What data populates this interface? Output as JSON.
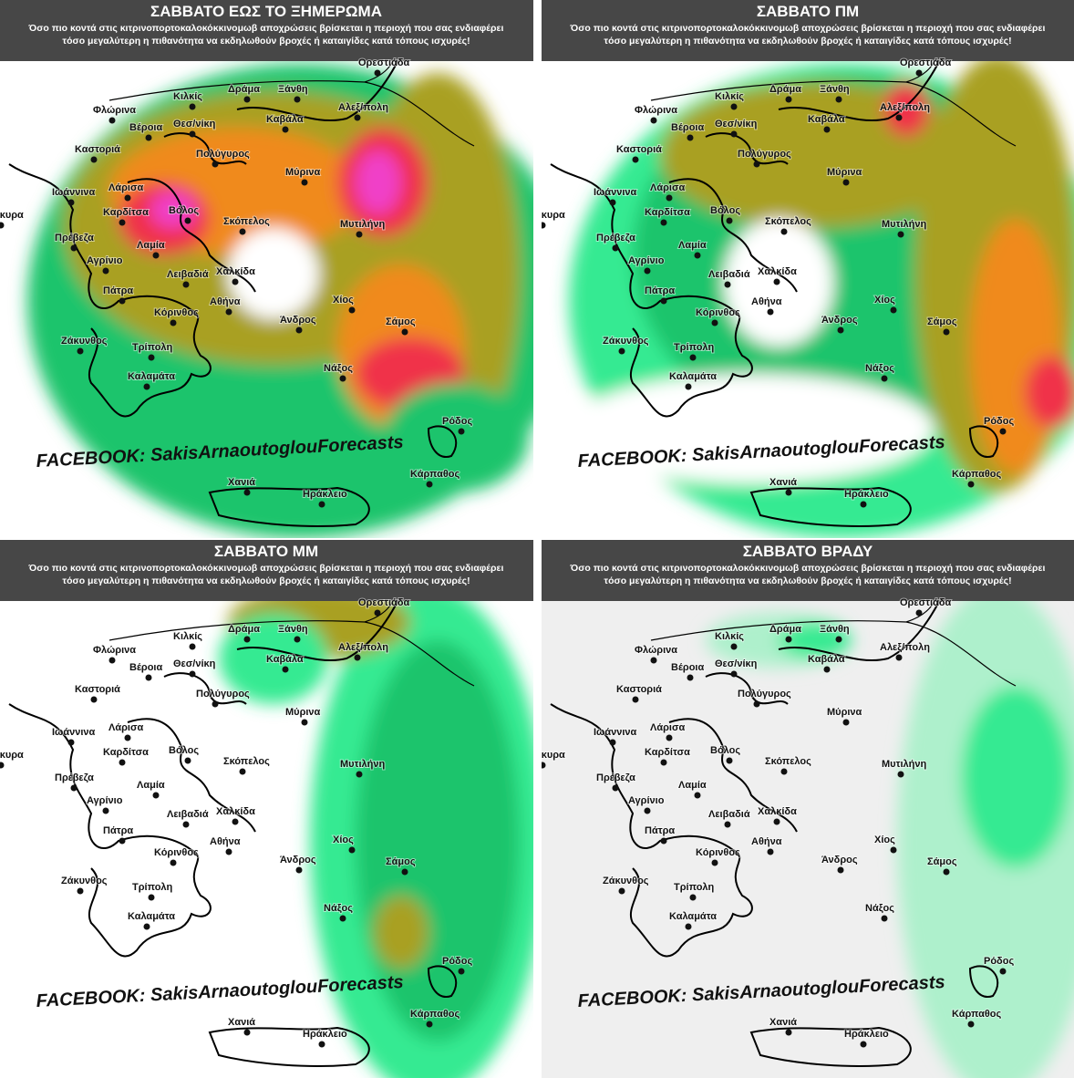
{
  "caption_lines": [
    "Όσο πιο κοντά στις κιτρινοπορτοκαλοκόκκινομωβ αποχρώσεις βρίσκεται η περιοχή που σας ενδιαφέρει",
    "τόσο μεγαλύτερη η πιθανότητα  να εκδηλωθούν βροχές ή καταιγίδες κατά τόπους ισχυρές!"
  ],
  "watermark": "FACEBOOK: SakisArnaoutoglouForecasts",
  "panels": [
    {
      "title": "ΣΑΒΒΑΤΟ ΕΩΣ ΤΟ ΞΗΜΕΡΩΜΑ"
    },
    {
      "title": "ΣΑΒΒΑΤΟ ΠΜ"
    },
    {
      "title": "ΣΑΒΒΑΤΟ ΜΜ"
    },
    {
      "title": "ΣΑΒΒΑΤΟ ΒΡΑΔΥ"
    }
  ],
  "cities": [
    "Ορεστιάδα",
    "Κιλκίς",
    "Δράμα",
    "Ξάνθη",
    "Φλώρινα",
    "Βέροια",
    "Θεσ/νίκη",
    "Καβάλα",
    "Αλεξ/πολη",
    "Καστοριά",
    "Πολύγυρος",
    "Μύρινα",
    "Ιωάννινα",
    "Λάρισα",
    "Κέρκυρα",
    "Καρδίτσα",
    "Βόλος",
    "Σκόπελος",
    "Μυτιλήνη",
    "Πρέβεζα",
    "Λαμία",
    "Αγρίνιο",
    "Λειβαδιά",
    "Χαλκίδα",
    "Πάτρα",
    "Αθήνα",
    "Χίος",
    "Κόρινθος",
    "Άνδρος",
    "Σάμος",
    "Ζάκυνθος",
    "Τρίπολη",
    "Νάξος",
    "Καλαμάτα",
    "Ρόδος",
    "Κάρπαθος",
    "Χανιά",
    "Ηράκλειο"
  ]
}
